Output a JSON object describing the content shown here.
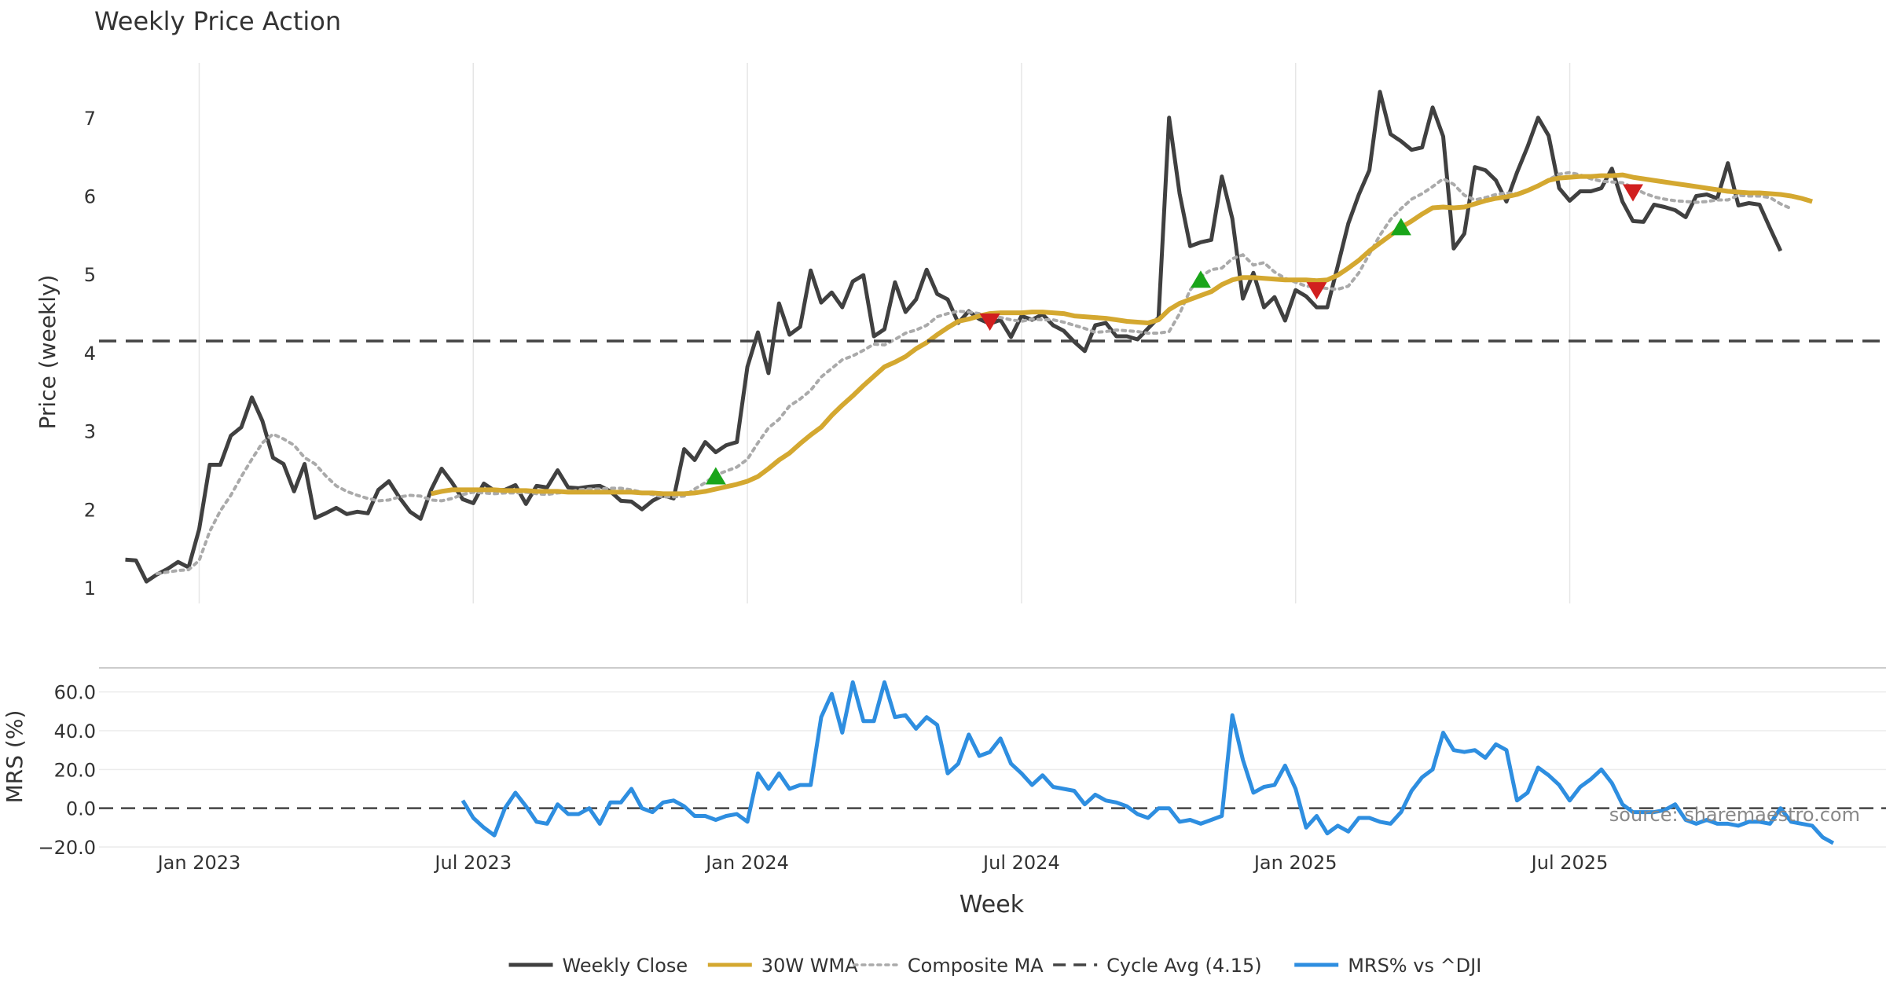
{
  "chart_data": [
    {
      "type": "line",
      "title": "Weekly Price Action",
      "xlabel": "",
      "ylabel": "Price (weekly)",
      "ylim": [
        0.8,
        7.7
      ],
      "yticks": [
        1,
        2,
        3,
        4,
        5,
        6,
        7
      ],
      "xlim_weeks": [
        -9.5,
        160
      ],
      "x_ticks": [
        {
          "week": 0,
          "label": "Jan 2023"
        },
        {
          "week": 26,
          "label": "Jul 2023"
        },
        {
          "week": 52,
          "label": "Jan 2024"
        },
        {
          "week": 78,
          "label": "Jul 2024"
        },
        {
          "week": 104,
          "label": "Jan 2025"
        },
        {
          "week": 130,
          "label": "Jul 2025"
        }
      ],
      "start_week": -7,
      "series": [
        {
          "name": "Weekly Close",
          "color": "#404040",
          "values": [
            1.36,
            1.35,
            1.08,
            1.17,
            1.24,
            1.33,
            1.26,
            1.75,
            2.57,
            2.57,
            2.94,
            3.05,
            3.43,
            3.13,
            2.66,
            2.58,
            2.23,
            2.58,
            1.89,
            1.95,
            2.02,
            1.94,
            1.97,
            1.95,
            2.25,
            2.36,
            2.15,
            1.97,
            1.88,
            2.25,
            2.52,
            2.34,
            2.13,
            2.08,
            2.33,
            2.24,
            2.25,
            2.31,
            2.07,
            2.3,
            2.28,
            2.5,
            2.28,
            2.27,
            2.29,
            2.3,
            2.23,
            2.11,
            2.1,
            2.0,
            2.11,
            2.18,
            2.14,
            2.77,
            2.63,
            2.86,
            2.73,
            2.82,
            2.86,
            3.82,
            4.26,
            3.74,
            4.63,
            4.23,
            4.33,
            5.05,
            4.64,
            4.77,
            4.58,
            4.91,
            4.99,
            4.21,
            4.3,
            4.9,
            4.52,
            4.68,
            5.06,
            4.75,
            4.68,
            4.38,
            4.53,
            4.43,
            4.37,
            4.42,
            4.2,
            4.47,
            4.42,
            4.49,
            4.35,
            4.28,
            4.14,
            4.02,
            4.35,
            4.38,
            4.21,
            4.21,
            4.17,
            4.31,
            4.45,
            7.0,
            6.03,
            5.36,
            5.41,
            5.44,
            6.25,
            5.71,
            4.69,
            5.02,
            4.58,
            4.71,
            4.41,
            4.8,
            4.72,
            4.58,
            4.58,
            5.11,
            5.65,
            6.02,
            6.33,
            7.33,
            6.79,
            6.7,
            6.59,
            6.62,
            7.13,
            6.76,
            5.33,
            5.52,
            6.37,
            6.33,
            6.2,
            5.93,
            6.3,
            6.63,
            7.0,
            6.77,
            6.1,
            5.94,
            6.06,
            6.06,
            6.1,
            6.35,
            5.93,
            5.68,
            5.67,
            5.89,
            5.86,
            5.82,
            5.73,
            6.0,
            6.02,
            5.97,
            6.42,
            5.88,
            5.91,
            5.89,
            5.59,
            5.3
          ]
        },
        {
          "name": "30W WMA",
          "color": "#d4a830",
          "start_index": 29,
          "values": [
            2.2,
            2.23,
            2.25,
            2.25,
            2.25,
            2.25,
            2.25,
            2.24,
            2.24,
            2.24,
            2.23,
            2.23,
            2.23,
            2.22,
            2.22,
            2.22,
            2.22,
            2.22,
            2.22,
            2.22,
            2.21,
            2.21,
            2.2,
            2.2,
            2.2,
            2.21,
            2.23,
            2.26,
            2.29,
            2.32,
            2.36,
            2.42,
            2.52,
            2.63,
            2.72,
            2.84,
            2.95,
            3.05,
            3.2,
            3.33,
            3.45,
            3.58,
            3.7,
            3.82,
            3.88,
            3.95,
            4.05,
            4.13,
            4.23,
            4.32,
            4.4,
            4.43,
            4.47,
            4.5,
            4.51,
            4.51,
            4.51,
            4.52,
            4.52,
            4.51,
            4.5,
            4.47,
            4.46,
            4.45,
            4.44,
            4.42,
            4.4,
            4.39,
            4.38,
            4.42,
            4.55,
            4.63,
            4.68,
            4.73,
            4.78,
            4.87,
            4.93,
            4.96,
            4.96,
            4.95,
            4.94,
            4.93,
            4.93,
            4.93,
            4.92,
            4.93,
            4.99,
            5.08,
            5.18,
            5.3,
            5.4,
            5.5,
            5.6,
            5.68,
            5.77,
            5.85,
            5.86,
            5.85,
            5.86,
            5.9,
            5.94,
            5.97,
            5.99,
            6.02,
            6.07,
            6.13,
            6.2,
            6.23,
            6.24,
            6.25,
            6.25,
            6.26,
            6.26,
            6.27,
            6.24,
            6.22,
            6.2,
            6.18,
            6.16,
            6.14,
            6.12,
            6.1,
            6.08,
            6.06,
            6.05,
            6.04,
            6.04,
            6.03,
            6.02,
            6.0,
            5.97,
            5.93
          ]
        },
        {
          "name": "Composite MA",
          "color": "#aaaaaa",
          "start_index": 3,
          "values": [
            1.18,
            1.2,
            1.22,
            1.23,
            1.35,
            1.72,
            1.98,
            2.18,
            2.42,
            2.64,
            2.85,
            2.96,
            2.9,
            2.82,
            2.66,
            2.58,
            2.43,
            2.3,
            2.23,
            2.18,
            2.14,
            2.11,
            2.12,
            2.16,
            2.18,
            2.17,
            2.12,
            2.11,
            2.14,
            2.19,
            2.22,
            2.21,
            2.2,
            2.21,
            2.21,
            2.22,
            2.2,
            2.19,
            2.21,
            2.22,
            2.25,
            2.26,
            2.26,
            2.27,
            2.27,
            2.25,
            2.22,
            2.19,
            2.16,
            2.16,
            2.17,
            2.26,
            2.34,
            2.44,
            2.49,
            2.54,
            2.64,
            2.85,
            3.04,
            3.15,
            3.32,
            3.41,
            3.52,
            3.69,
            3.8,
            3.91,
            3.96,
            4.03,
            4.11,
            4.1,
            4.17,
            4.25,
            4.29,
            4.35,
            4.46,
            4.5,
            4.53,
            4.52,
            4.5,
            4.47,
            4.45,
            4.42,
            4.4,
            4.43,
            4.42,
            4.42,
            4.39,
            4.35,
            4.31,
            4.26,
            4.27,
            4.29,
            4.28,
            4.27,
            4.25,
            4.25,
            4.27,
            4.5,
            4.8,
            4.97,
            5.06,
            5.08,
            5.2,
            5.25,
            5.12,
            5.15,
            5.03,
            4.95,
            4.9,
            4.85,
            4.84,
            4.82,
            4.81,
            4.85,
            5.02,
            5.26,
            5.5,
            5.7,
            5.84,
            5.96,
            6.03,
            6.12,
            6.22,
            6.15,
            6.01,
            5.95,
            5.98,
            6.02,
            6.04,
            6.03,
            6.08,
            6.12,
            6.21,
            6.28,
            6.3,
            6.27,
            6.22,
            6.19,
            6.18,
            6.17,
            6.11,
            6.04,
            5.99,
            5.96,
            5.94,
            5.93,
            5.92,
            5.93,
            5.95,
            5.95,
            6.01,
            6.0,
            6.0,
            5.98,
            5.9,
            5.84
          ]
        },
        {
          "name": "Cycle Avg (4.15)",
          "color": "#444444",
          "value": 4.15
        }
      ],
      "buy_signals": [
        {
          "index": 56,
          "y": 2.42
        },
        {
          "index": 102,
          "y": 4.93
        },
        {
          "index": 121,
          "y": 5.6
        }
      ],
      "sell_signals": [
        {
          "index": 82,
          "y": 4.4
        },
        {
          "index": 113,
          "y": 4.8
        },
        {
          "index": 143,
          "y": 6.05
        }
      ]
    },
    {
      "type": "line",
      "title": "",
      "xlabel": "Week",
      "ylabel": "MRS (%)",
      "ylim": [
        -20,
        70
      ],
      "ytick_labels": [
        "60.0",
        "40.0",
        "20.0",
        "0.0",
        "−20.0"
      ],
      "ytick_values": [
        60,
        40,
        20,
        0,
        -20
      ],
      "zero_line": 0,
      "series": [
        {
          "name": "MRS% vs ^DJI",
          "color": "#2e8ee0",
          "start_index": 32,
          "values": [
            4,
            -5,
            -10,
            -14,
            0,
            8,
            1,
            -7,
            -8,
            2,
            -3,
            -3,
            0,
            -8,
            3,
            3,
            10,
            0,
            -2,
            3,
            4,
            1,
            -4,
            -4,
            -6,
            -4,
            -3,
            -7,
            18,
            10,
            18,
            10,
            12,
            12,
            47,
            59,
            39,
            65,
            45,
            45,
            65,
            47,
            48,
            41,
            47,
            43,
            18,
            23,
            38,
            27,
            29,
            36,
            23,
            18,
            12,
            17,
            11,
            10,
            9,
            2,
            7,
            4,
            3,
            1,
            -3,
            -5,
            0,
            0,
            -7,
            -6,
            -8,
            -6,
            -4,
            48,
            25,
            8,
            11,
            12,
            22,
            10,
            -10,
            -4,
            -13,
            -9,
            -12,
            -5,
            -5,
            -7,
            -8,
            -2,
            9,
            16,
            20,
            39,
            30,
            29,
            30,
            26,
            33,
            30,
            4,
            8,
            21,
            17,
            12,
            4,
            11,
            15,
            20,
            13,
            2,
            -2,
            -2,
            -2,
            -1,
            2,
            -6,
            -8,
            -6,
            -8,
            -8,
            -9,
            -7,
            -7,
            -8,
            0,
            -7,
            -8,
            -9,
            -15,
            -18
          ]
        }
      ],
      "watermark": "source: sharemaestro.com"
    }
  ],
  "legend": {
    "items": [
      {
        "label": "Weekly Close",
        "style": "solid",
        "color": "#404040"
      },
      {
        "label": "30W WMA",
        "style": "solid",
        "color": "#d4a830"
      },
      {
        "label": "Composite MA",
        "style": "dotted",
        "color": "#aaaaaa"
      },
      {
        "label": "Cycle Avg (4.15)",
        "style": "dashed",
        "color": "#444444"
      },
      {
        "label": "MRS% vs ^DJI",
        "style": "solid",
        "color": "#2e8ee0"
      }
    ]
  },
  "colors": {
    "buy": "#1aa51a",
    "sell": "#d11f1f",
    "grid": "#e6e6e6",
    "axis_line": "#cccccc"
  }
}
